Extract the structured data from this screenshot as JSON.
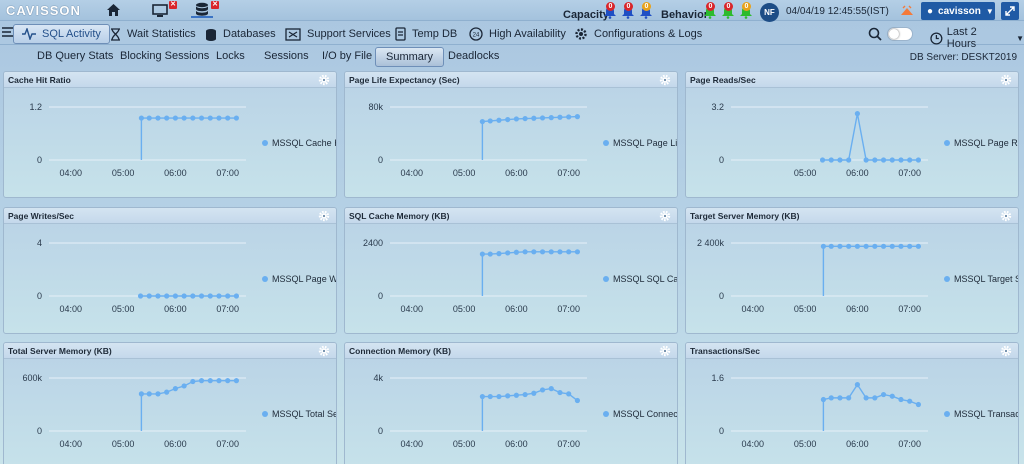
{
  "topbar": {
    "logo": "CAVISSON",
    "capacity_label": "Capacity",
    "behavior_label": "Behavior",
    "capacity_counts": [
      "0",
      "0",
      "0"
    ],
    "behavior_counts": [
      "0",
      "0",
      "0"
    ],
    "avatar_initials": "NF",
    "datetime": "04/04/19 12:45:55(IST)",
    "user": "cavisson"
  },
  "main_tabs": [
    {
      "label": "SQL Activity",
      "icon": "pulse-icon"
    },
    {
      "label": "Wait Statistics",
      "icon": "hourglass-icon"
    },
    {
      "label": "Databases",
      "icon": "database-icon"
    },
    {
      "label": "Support Services",
      "icon": "services-icon"
    },
    {
      "label": "Temp DB",
      "icon": "tempdb-icon"
    },
    {
      "label": "High Availability",
      "icon": "availability-icon"
    },
    {
      "label": "Configurations & Logs",
      "icon": "gear-icon"
    }
  ],
  "time_range": "Last 2 Hours",
  "sub_tabs": [
    "DB Query Stats",
    "Blocking Sessions",
    "Locks",
    "Sessions",
    "I/O by File",
    "Summary",
    "Deadlocks"
  ],
  "active_sub_tab": "Summary",
  "db_server": "DB Server: DESKT2019",
  "colors": {
    "series": "#6aaff0",
    "accent": "#1f5aa5"
  },
  "chart_data": [
    {
      "type": "line",
      "title": "Cache Hit Ratio",
      "yticks": [
        "1.2",
        "0"
      ],
      "xticks": [
        "04:00",
        "05:00",
        "06:00",
        "07:00"
      ],
      "ylim": [
        0,
        1.2
      ],
      "series": [
        {
          "name": "MSSQL Cache Hit Ratio",
          "x": [
            "05:21",
            "05:30",
            "05:40",
            "05:50",
            "06:00",
            "06:10",
            "06:20",
            "06:30",
            "06:40",
            "06:50",
            "07:00",
            "07:10"
          ],
          "values": [
            0.95,
            0.95,
            0.95,
            0.95,
            0.95,
            0.95,
            0.95,
            0.95,
            0.95,
            0.95,
            0.95,
            0.95
          ]
        }
      ]
    },
    {
      "type": "line",
      "title": "Page Life Expectancy (Sec)",
      "yticks": [
        "80k",
        "0"
      ],
      "xticks": [
        "04:00",
        "05:00",
        "06:00",
        "07:00"
      ],
      "ylim": [
        0,
        80000
      ],
      "series": [
        {
          "name": "MSSQL Page Life Expectancy",
          "x": [
            "05:21",
            "05:30",
            "05:40",
            "05:50",
            "06:00",
            "06:10",
            "06:20",
            "06:30",
            "06:40",
            "06:50",
            "07:00",
            "07:10"
          ],
          "values": [
            58000,
            59000,
            60000,
            61000,
            62000,
            62500,
            63000,
            63500,
            64000,
            64500,
            65000,
            65500
          ]
        }
      ]
    },
    {
      "type": "line",
      "title": "Page Reads/Sec",
      "yticks": [
        "3.2",
        "0"
      ],
      "xticks": [
        "05:00",
        "06:00",
        "07:00"
      ],
      "ylim": [
        0,
        3.2
      ],
      "series": [
        {
          "name": "MSSQL Page Reads/Sec",
          "x": [
            "05:20",
            "05:30",
            "05:40",
            "05:50",
            "06:00",
            "06:10",
            "06:20",
            "06:30",
            "06:40",
            "06:50",
            "07:00",
            "07:10"
          ],
          "values": [
            0,
            0,
            0,
            0,
            2.8,
            0,
            0,
            0,
            0,
            0,
            0,
            0
          ]
        }
      ]
    },
    {
      "type": "line",
      "title": "Page Writes/Sec",
      "yticks": [
        "4",
        "0"
      ],
      "xticks": [
        "04:00",
        "05:00",
        "06:00",
        "07:00"
      ],
      "ylim": [
        0,
        4
      ],
      "series": [
        {
          "name": "MSSQL Page Writes/Sec",
          "x": [
            "05:20",
            "05:30",
            "05:40",
            "05:50",
            "06:00",
            "06:10",
            "06:20",
            "06:30",
            "06:40",
            "06:50",
            "07:00",
            "07:10"
          ],
          "values": [
            0,
            0,
            0,
            0,
            0,
            0,
            0,
            0,
            0,
            0,
            0,
            0
          ]
        }
      ]
    },
    {
      "type": "line",
      "title": "SQL Cache Memory (KB)",
      "yticks": [
        "2400",
        "0"
      ],
      "xticks": [
        "04:00",
        "05:00",
        "06:00",
        "07:00"
      ],
      "ylim": [
        0,
        2400
      ],
      "series": [
        {
          "name": "MSSQL SQL Cache Memory",
          "x": [
            "05:21",
            "05:30",
            "05:40",
            "05:50",
            "06:00",
            "06:10",
            "06:20",
            "06:30",
            "06:40",
            "06:50",
            "07:00",
            "07:10"
          ],
          "values": [
            1900,
            1900,
            1920,
            1950,
            1980,
            2000,
            2000,
            2000,
            2000,
            2000,
            2000,
            2000
          ]
        }
      ]
    },
    {
      "type": "line",
      "title": "Target Server Memory (KB)",
      "yticks": [
        "2 400k",
        "0"
      ],
      "xticks": [
        "04:00",
        "05:00",
        "06:00",
        "07:00"
      ],
      "ylim": [
        0,
        2400000
      ],
      "series": [
        {
          "name": "MSSQL Target Server Memory",
          "x": [
            "05:21",
            "05:30",
            "05:40",
            "05:50",
            "06:00",
            "06:10",
            "06:20",
            "06:30",
            "06:40",
            "06:50",
            "07:00",
            "07:10"
          ],
          "values": [
            2250000,
            2250000,
            2250000,
            2250000,
            2250000,
            2250000,
            2250000,
            2250000,
            2250000,
            2250000,
            2250000,
            2250000
          ]
        }
      ]
    },
    {
      "type": "line",
      "title": "Total Server Memory (KB)",
      "yticks": [
        "600k",
        "0"
      ],
      "xticks": [
        "04:00",
        "05:00",
        "06:00",
        "07:00"
      ],
      "ylim": [
        0,
        600000
      ],
      "series": [
        {
          "name": "MSSQL Total Server Memory",
          "x": [
            "05:21",
            "05:30",
            "05:40",
            "05:50",
            "06:00",
            "06:10",
            "06:20",
            "06:30",
            "06:40",
            "06:50",
            "07:00",
            "07:10"
          ],
          "values": [
            420000,
            420000,
            420000,
            440000,
            480000,
            510000,
            560000,
            570000,
            570000,
            570000,
            570000,
            570000
          ]
        }
      ]
    },
    {
      "type": "line",
      "title": "Connection Memory (KB)",
      "yticks": [
        "4k",
        "0"
      ],
      "xticks": [
        "04:00",
        "05:00",
        "06:00",
        "07:00"
      ],
      "ylim": [
        0,
        4000
      ],
      "series": [
        {
          "name": "MSSQL Connection Memory",
          "x": [
            "05:21",
            "05:30",
            "05:40",
            "05:50",
            "06:00",
            "06:10",
            "06:20",
            "06:30",
            "06:40",
            "06:50",
            "07:00",
            "07:10"
          ],
          "values": [
            2600,
            2600,
            2600,
            2650,
            2700,
            2750,
            2850,
            3100,
            3200,
            2900,
            2800,
            2300
          ]
        }
      ]
    },
    {
      "type": "line",
      "title": "Transactions/Sec",
      "yticks": [
        "1.6",
        "0"
      ],
      "xticks": [
        "04:00",
        "05:00",
        "06:00",
        "07:00"
      ],
      "ylim": [
        0,
        1.6
      ],
      "series": [
        {
          "name": "MSSQL Transactions/Sec",
          "x": [
            "05:21",
            "05:30",
            "05:40",
            "05:50",
            "06:00",
            "06:10",
            "06:20",
            "06:30",
            "06:40",
            "06:50",
            "07:00",
            "07:10"
          ],
          "values": [
            0.95,
            1.0,
            1.0,
            1.0,
            1.4,
            1.0,
            1.0,
            1.1,
            1.05,
            0.95,
            0.9,
            0.8
          ]
        }
      ]
    }
  ]
}
